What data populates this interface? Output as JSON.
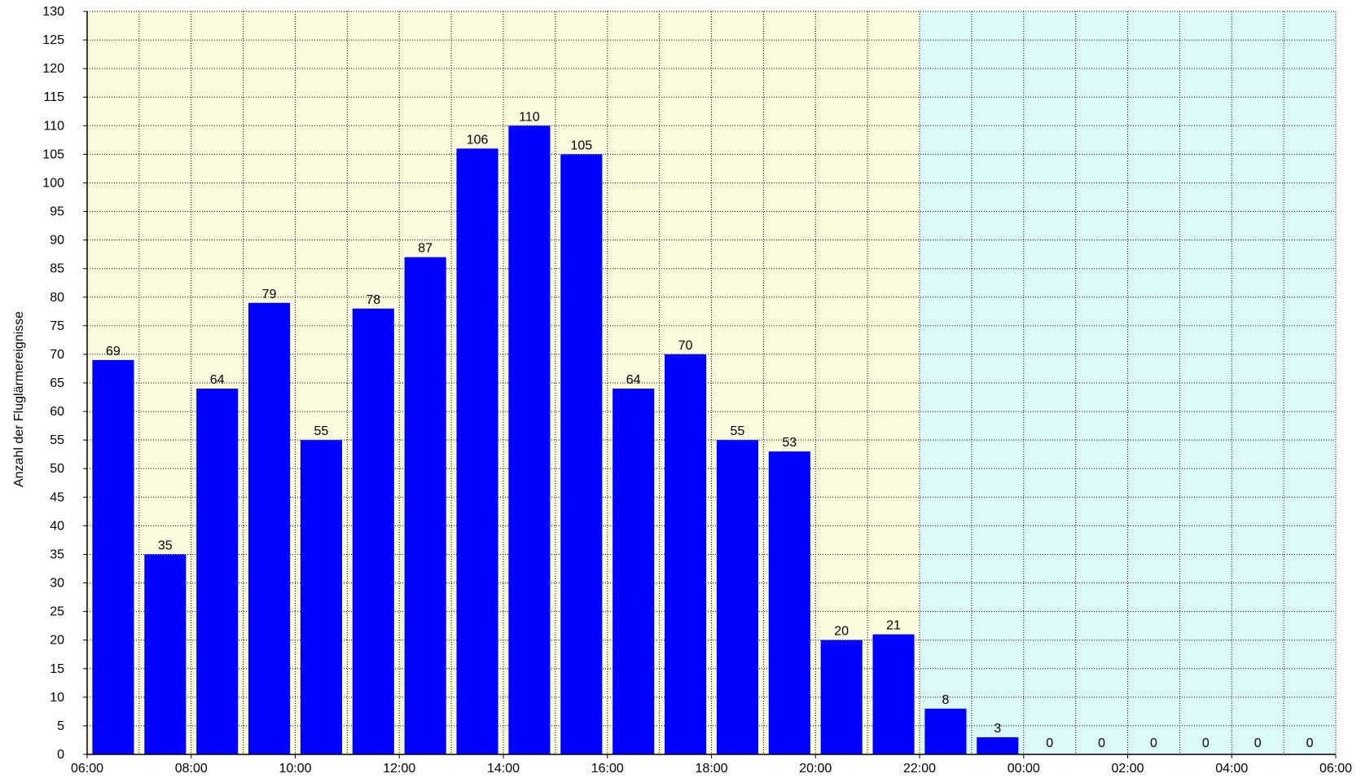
{
  "chart_data": {
    "type": "bar",
    "title": "",
    "xlabel": "",
    "ylabel": "Anzahl der Fluglärmereignisse",
    "ylim": [
      0,
      130
    ],
    "ytick_step": 5,
    "x_tick_labels": [
      "06:00",
      "08:00",
      "10:00",
      "12:00",
      "14:00",
      "16:00",
      "18:00",
      "20:00",
      "22:00",
      "00:00",
      "02:00",
      "04:00",
      "06:00"
    ],
    "categories": [
      "06",
      "07",
      "08",
      "09",
      "10",
      "11",
      "12",
      "13",
      "14",
      "15",
      "16",
      "17",
      "18",
      "19",
      "20",
      "21",
      "22",
      "23",
      "00",
      "01",
      "02",
      "03",
      "04",
      "05"
    ],
    "values": [
      69,
      35,
      64,
      79,
      55,
      78,
      87,
      106,
      110,
      105,
      64,
      70,
      55,
      53,
      20,
      21,
      8,
      3,
      0,
      0,
      0,
      0,
      0,
      0
    ],
    "grid": true,
    "colors": {
      "bar": "#0000ff",
      "day_background": "#fafadc",
      "night_background": "#dcfafa"
    },
    "day_hours": 16,
    "night_hours": 8
  }
}
